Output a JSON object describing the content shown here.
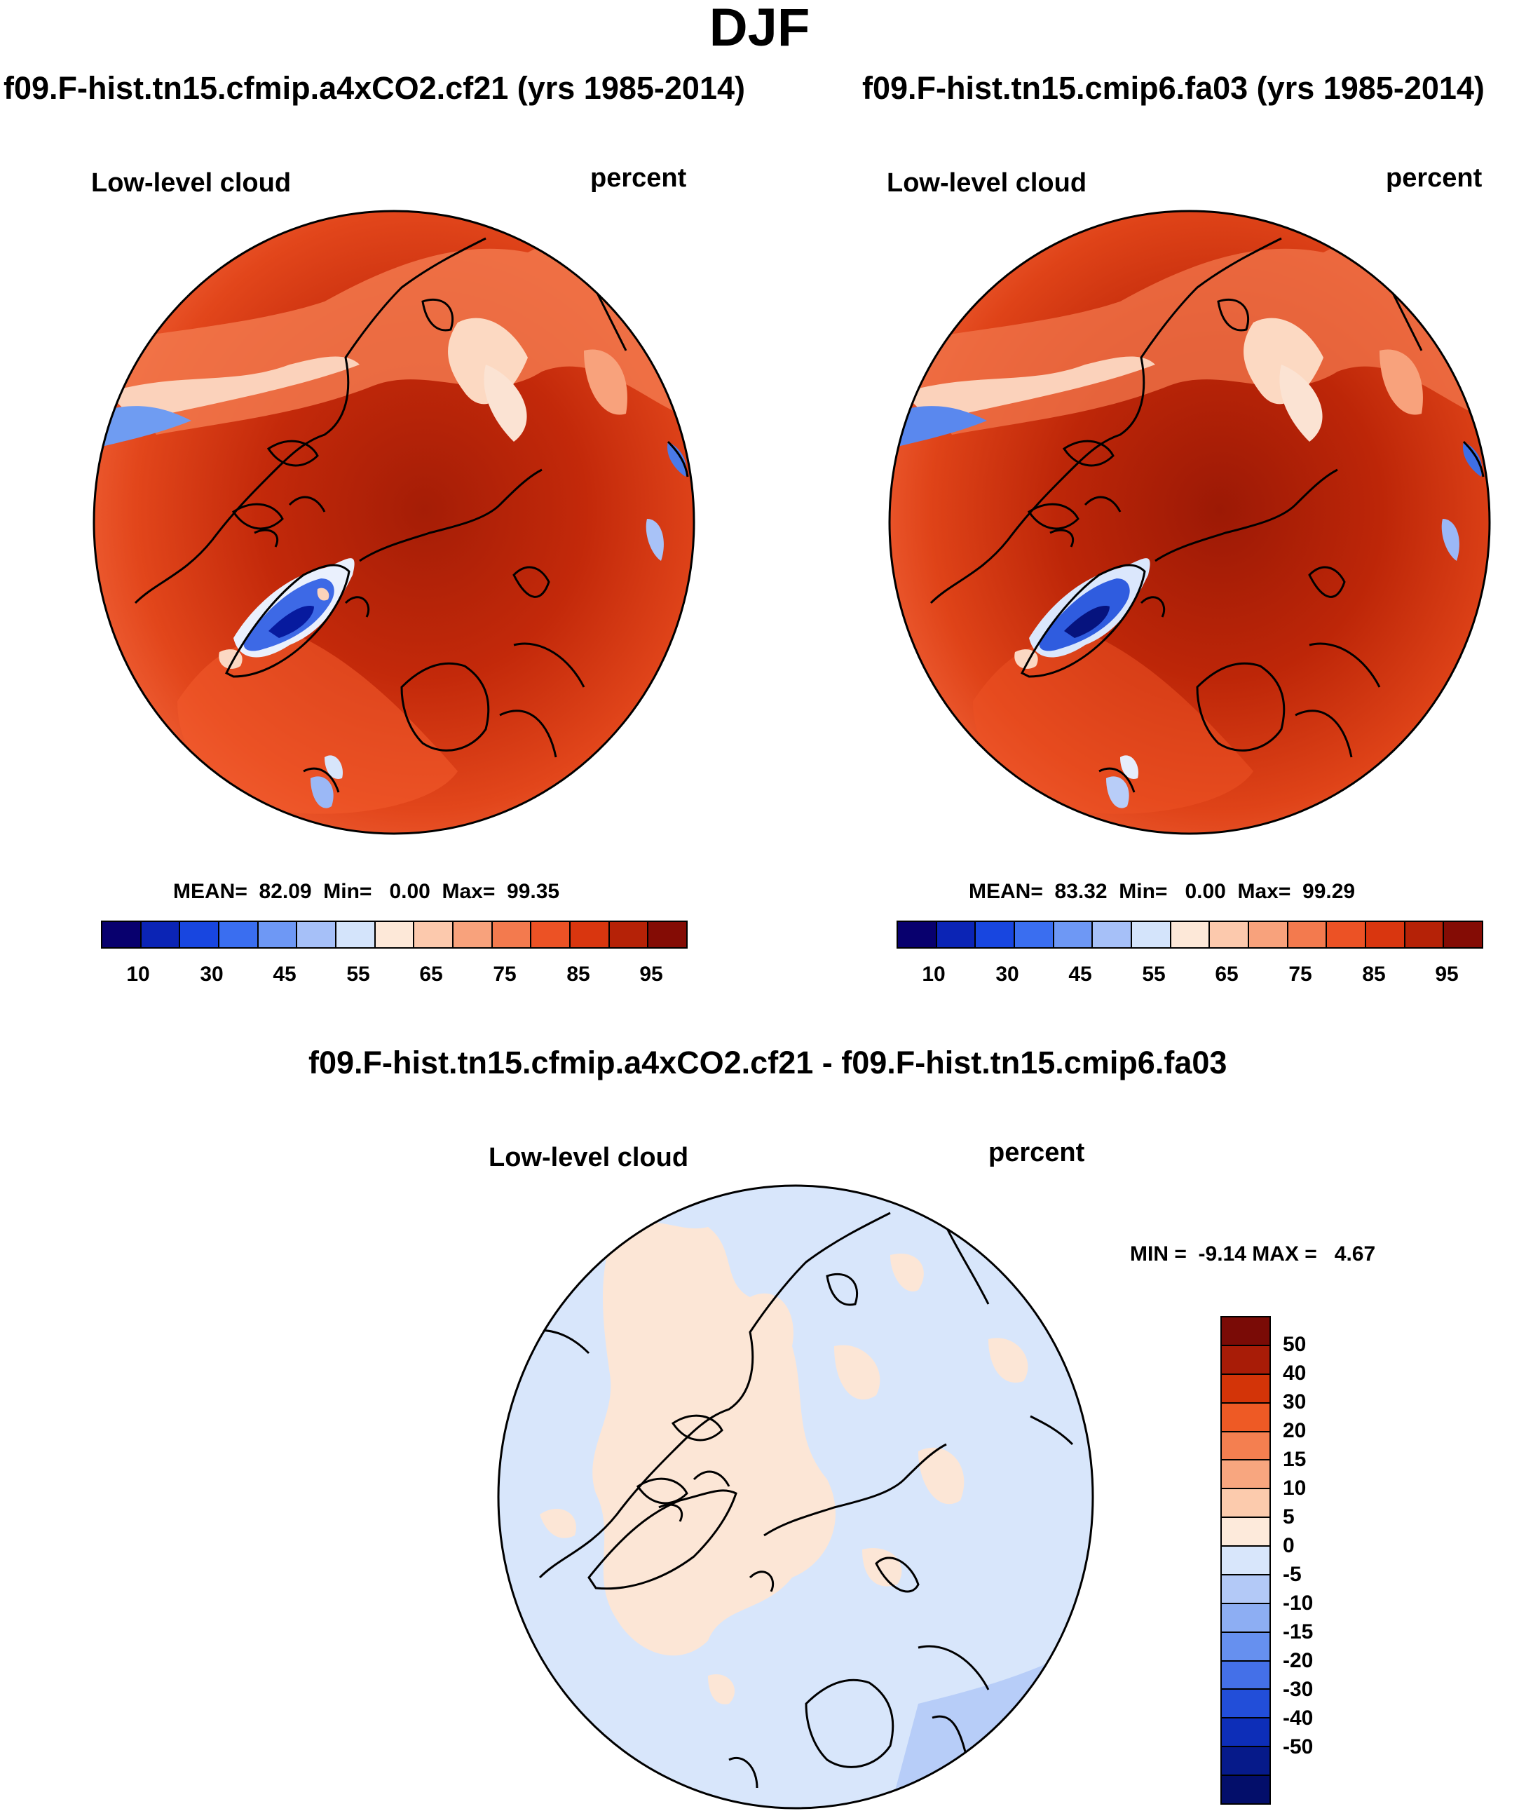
{
  "figure": {
    "title": "DJF"
  },
  "panels": [
    {
      "title": "f09.F-hist.tn15.cfmip.a4xCO2.cf21 (yrs 1985-2014)",
      "variable": "Low-level cloud",
      "units": "percent",
      "stats": "MEAN=  82.09  Min=   0.00  Max=  99.35"
    },
    {
      "title": "f09.F-hist.tn15.cmip6.fa03 (yrs 1985-2014)",
      "variable": "Low-level cloud",
      "units": "percent",
      "stats": "MEAN=  83.32  Min=   0.00  Max=  99.29"
    }
  ],
  "diff": {
    "title": "f09.F-hist.tn15.cfmip.a4xCO2.cf21 - f09.F-hist.tn15.cmip6.fa03",
    "variable": "Low-level cloud",
    "units": "percent",
    "stats": "MIN =  -9.14 MAX =   4.67"
  },
  "abs_colorbar": {
    "colors": [
      "#08006e",
      "#0b24b5",
      "#1846e0",
      "#3a6ef0",
      "#6e98f5",
      "#a6c0f8",
      "#d4e4fb",
      "#fde8d8",
      "#fcc9ad",
      "#f8a27c",
      "#f37a4e",
      "#ec5225",
      "#d9360f",
      "#b52207",
      "#840c05"
    ],
    "tick_labels": [
      "10",
      "30",
      "45",
      "55",
      "65",
      "75",
      "85",
      "95"
    ]
  },
  "diff_colorbar": {
    "colors": [
      "#7a0b06",
      "#a81c07",
      "#d33408",
      "#ee5a25",
      "#f47f50",
      "#f8a67f",
      "#fccbad",
      "#fdeadb",
      "#d8e6fb",
      "#b3c9f7",
      "#8daef3",
      "#6690ef",
      "#4470e8",
      "#224ed9",
      "#0d2eb8",
      "#061a8a",
      "#030e6a"
    ],
    "tick_labels": [
      "50",
      "40",
      "30",
      "20",
      "15",
      "10",
      "5",
      "0",
      "-5",
      "-10",
      "-15",
      "-20",
      "-30",
      "-40",
      "-50"
    ]
  }
}
